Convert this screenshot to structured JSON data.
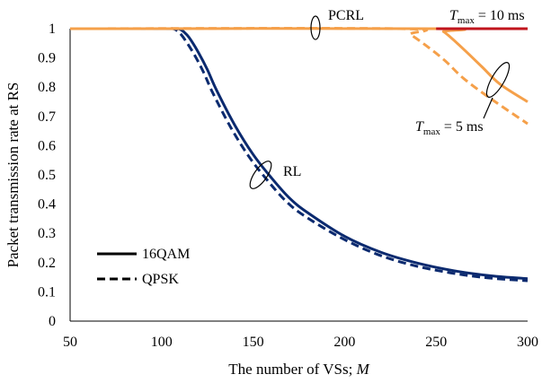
{
  "chart_data": {
    "type": "line",
    "title": "",
    "xlabel": "The number of VSs; ",
    "xlabel_var": "M",
    "ylabel": "Packet transmission rate at RS",
    "xlim": [
      50,
      300
    ],
    "ylim": [
      0,
      1
    ],
    "xticks": [
      "50",
      "100",
      "150",
      "200",
      "250",
      "300"
    ],
    "yticks": [
      "0",
      "0.1",
      "0.2",
      "0.3",
      "0.4",
      "0.5",
      "0.6",
      "0.7",
      "0.8",
      "0.9",
      "1"
    ],
    "grid": false,
    "legend_position": "bottom-left",
    "legend": [
      {
        "label": "16QAM",
        "style": "solid"
      },
      {
        "label": "QPSK",
        "style": "dashed"
      }
    ],
    "colors": {
      "RL": "#0b2a6f",
      "PCRL": "#f5a04a",
      "Tmax10": "#c0141c"
    },
    "annotations": {
      "pcrl": "PCRL",
      "rl": "RL",
      "tmax10_var": "T",
      "tmax10_sub": "max",
      "tmax10_val": " = 10 ms",
      "tmax5_var": "T",
      "tmax5_sub": "max",
      "tmax5_val": " = 5 ms"
    },
    "series": [
      {
        "group": "RL",
        "modulation": "16QAM",
        "style": "solid",
        "color": "#0b2a6f",
        "x": [
          50,
          100,
          108,
          110,
          112,
          115,
          120,
          125,
          130,
          140,
          150,
          160,
          170,
          180,
          200,
          220,
          240,
          260,
          280,
          300
        ],
        "y": [
          1,
          1,
          1,
          0.998,
          0.99,
          0.97,
          0.92,
          0.86,
          0.79,
          0.67,
          0.57,
          0.49,
          0.42,
          0.37,
          0.29,
          0.235,
          0.198,
          0.172,
          0.155,
          0.145
        ]
      },
      {
        "group": "RL",
        "modulation": "QPSK",
        "style": "dashed",
        "color": "#0b2a6f",
        "x": [
          50,
          100,
          106,
          108,
          110,
          113,
          118,
          123,
          128,
          138,
          148,
          158,
          168,
          178,
          198,
          218,
          238,
          258,
          278,
          300
        ],
        "y": [
          1,
          1,
          1,
          0.995,
          0.985,
          0.96,
          0.91,
          0.85,
          0.78,
          0.66,
          0.56,
          0.48,
          0.41,
          0.36,
          0.285,
          0.228,
          0.19,
          0.165,
          0.148,
          0.138
        ]
      },
      {
        "group": "PCRL",
        "modulation": "16QAM",
        "style": "solid",
        "color": "#f5a04a",
        "x": [
          50,
          250,
          254,
          258,
          265,
          275,
          285,
          300
        ],
        "y": [
          1,
          1,
          0.99,
          0.97,
          0.93,
          0.87,
          0.81,
          0.75
        ]
      },
      {
        "group": "PCRL",
        "modulation": "QPSK",
        "style": "dashed",
        "color": "#f5a04a",
        "x": [
          50,
          230,
          236,
          245,
          255,
          265,
          280,
          300
        ],
        "y": [
          1,
          1,
          0.98,
          0.94,
          0.89,
          0.83,
          0.76,
          0.675
        ]
      },
      {
        "group": "Tmax10",
        "modulation": "both",
        "style": "solid",
        "color": "#c0141c",
        "x": [
          250,
          300
        ],
        "y": [
          1,
          1
        ]
      }
    ]
  }
}
